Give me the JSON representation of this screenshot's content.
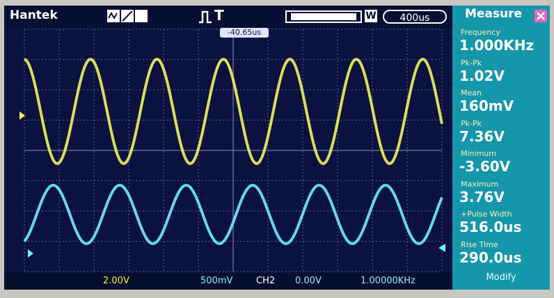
{
  "top_bar": {
    "brand": "Hantek",
    "trigger_symbol": "T",
    "window_label": "W",
    "timebase": "400us",
    "trigger_offset": "-40.65us"
  },
  "measure": {
    "title": "Measure",
    "items": [
      {
        "label": "Frequency",
        "value": "1.000KHz"
      },
      {
        "label": "Pk-Pk",
        "value": "1.02V"
      },
      {
        "label": "Mean",
        "value": "160mV"
      },
      {
        "label": "Pk-Pk",
        "value": "7.36V"
      },
      {
        "label": "Minimum",
        "value": "-3.60V"
      },
      {
        "label": "Maximum",
        "value": "3.76V"
      },
      {
        "label": "+Pulse Width",
        "value": "516.0us"
      },
      {
        "label": "Rise Time",
        "value": "290.0us"
      }
    ],
    "modify": "Modify"
  },
  "bottom_bar": {
    "ch1_scale": "2.00V",
    "ch2_scale": "500mV",
    "trigger_source": "CH2",
    "trigger_level": "0.00V",
    "trigger_frequency": "1.00000KHz"
  }
}
